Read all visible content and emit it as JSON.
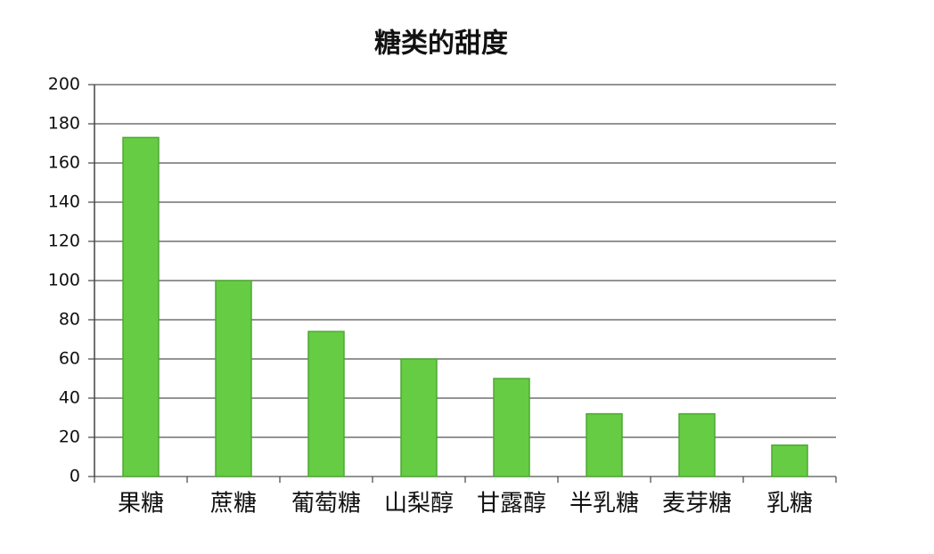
{
  "chart_data": {
    "type": "bar",
    "title": "糖类的甜度",
    "categories": [
      "果糖",
      "蔗糖",
      "葡萄糖",
      "山梨醇",
      "甘露醇",
      "半乳糖",
      "麦芽糖",
      "乳糖"
    ],
    "values": [
      173,
      100,
      74,
      60,
      50,
      32,
      32,
      16
    ],
    "color": "#66cc44",
    "ylim": [
      0,
      200
    ],
    "yticks": [
      0,
      20,
      40,
      60,
      80,
      100,
      120,
      140,
      160,
      180,
      200
    ],
    "grid": true
  }
}
